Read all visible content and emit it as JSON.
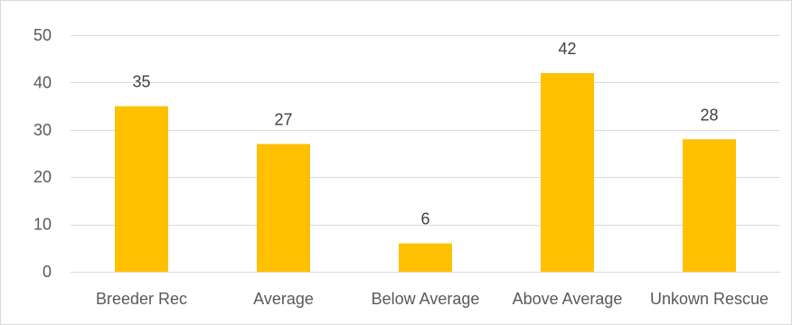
{
  "chart_data": {
    "type": "bar",
    "title": "",
    "xlabel": "",
    "ylabel": "",
    "categories": [
      "Breeder Rec",
      "Average",
      "Below Average",
      "Above Average",
      "Unkown Rescue"
    ],
    "values": [
      35,
      27,
      6,
      42,
      28
    ],
    "data_labels": [
      "35",
      "27",
      "6",
      "42",
      "28"
    ],
    "ylim": [
      0,
      50
    ],
    "yticks": [
      0,
      10,
      20,
      30,
      40,
      50
    ],
    "ytick_labels": [
      "0",
      "10",
      "20",
      "30",
      "40",
      "50"
    ],
    "grid": true,
    "legend": "none",
    "bar_color": "#ffc000",
    "grid_color": "#d9d9d9"
  }
}
